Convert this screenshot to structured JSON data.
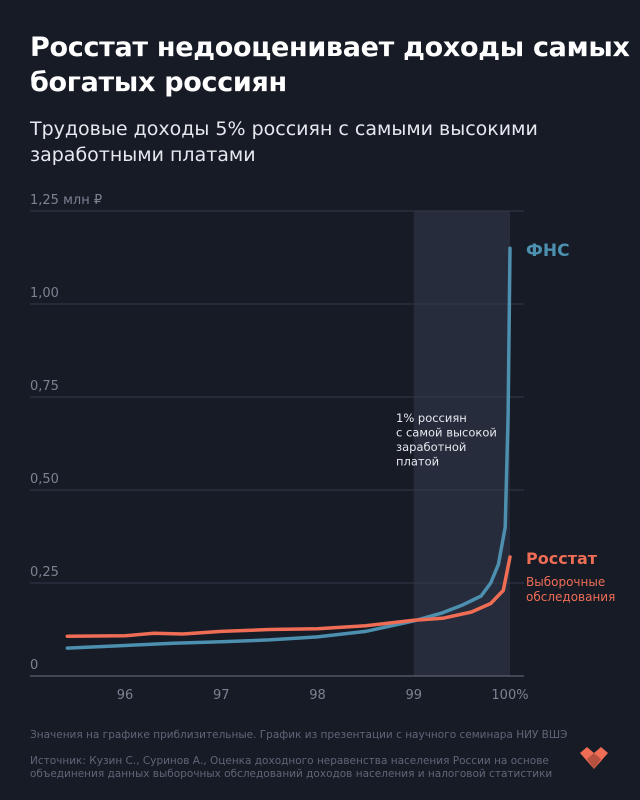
{
  "title": "Росстат недооценивает доходы самых богатых россиян",
  "subtitle": "Трудовые доходы 5% россиян с самыми высокими заработными платами",
  "chart_data": {
    "type": "line",
    "title": "Росстат недооценивает доходы самых богатых россиян",
    "subtitle": "Трудовые доходы 5% россиян с самыми высокими заработными платами",
    "xlabel": "",
    "ylabel": "",
    "x_ticks": [
      "96",
      "97",
      "98",
      "99",
      "100%"
    ],
    "x_tick_values": [
      96,
      97,
      98,
      99,
      100
    ],
    "y_ticks": [
      "0",
      "0,25",
      "0,50",
      "0,75",
      "1,00",
      "1,25 млн ₽"
    ],
    "y_tick_values": [
      0,
      0.25,
      0.5,
      0.75,
      1.0,
      1.25
    ],
    "xlim": [
      95.4,
      100.15
    ],
    "ylim": [
      0,
      1.25
    ],
    "grid": true,
    "highlight_band": {
      "x": [
        99,
        100
      ],
      "label": "1% россиян с самой высокой заработной платой",
      "label_lines": [
        "1% россиян",
        "с самой высокой",
        "заработной",
        "платой"
      ]
    },
    "series": [
      {
        "name": "ФНС",
        "color": "#4d8fae",
        "x": [
          95.4,
          96,
          96.5,
          97,
          97.5,
          98,
          98.5,
          99,
          99.3,
          99.5,
          99.7,
          99.8,
          99.88,
          99.95,
          99.98,
          100
        ],
        "y": [
          0.075,
          0.082,
          0.088,
          0.092,
          0.097,
          0.105,
          0.12,
          0.148,
          0.17,
          0.19,
          0.215,
          0.25,
          0.3,
          0.4,
          0.7,
          1.15
        ]
      },
      {
        "name": "Росстат",
        "subname": "Выборочные обследования",
        "color": "#ef6d55",
        "x": [
          95.4,
          96,
          96.3,
          96.6,
          97,
          97.5,
          98,
          98.5,
          99,
          99.3,
          99.6,
          99.8,
          99.93,
          100
        ],
        "y": [
          0.107,
          0.108,
          0.115,
          0.113,
          0.12,
          0.125,
          0.127,
          0.135,
          0.15,
          0.155,
          0.172,
          0.195,
          0.23,
          0.32
        ]
      }
    ]
  },
  "footnote": "Значения на графике приблизительные. График из презентации с научного семинара НИУ ВШЭ",
  "source_line1": "Источник: Кузин С., Суринов А., Оценка доходного неравенства населения России на основе",
  "source_line2": "объединения данных выборочных обследований доходов населения и налоговой статистики"
}
